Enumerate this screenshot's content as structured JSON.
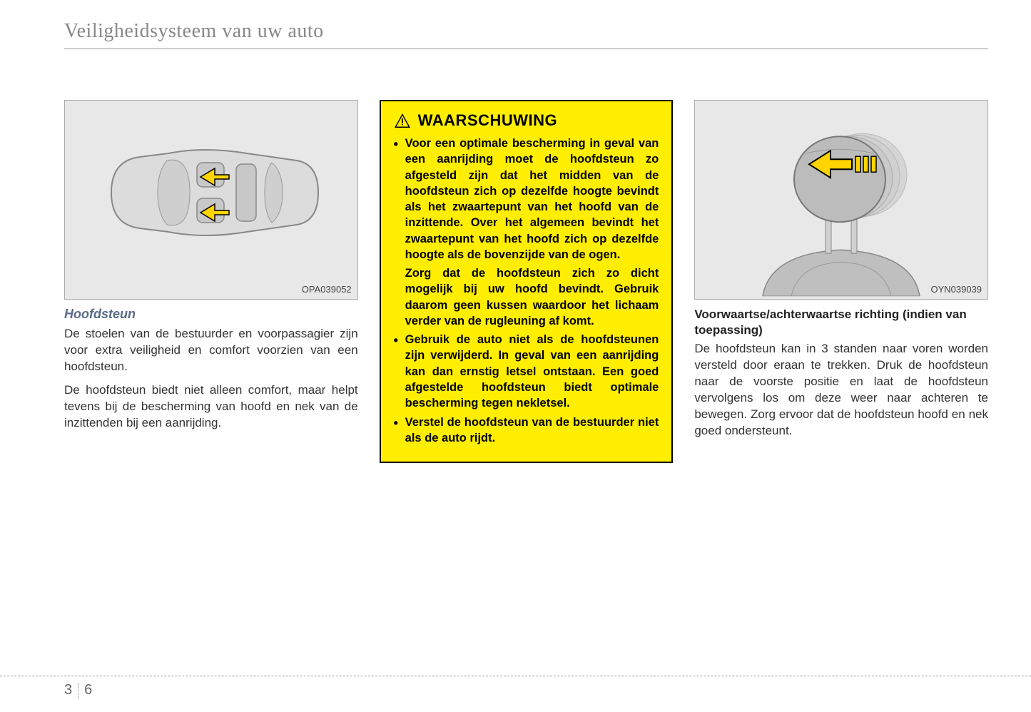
{
  "header": {
    "title": "Veiligheidsysteem van uw auto"
  },
  "column1": {
    "figure_code": "OPA039052",
    "section_title": "Hoofdsteun",
    "para1": "De stoelen van de bestuurder en voorpassagier zijn voor extra veiligheid en comfort voorzien van een hoofdsteun.",
    "para2": "De hoofdsteun biedt niet alleen comfort, maar helpt tevens bij de bescherming van hoofd en nek van de inzittenden bij een aanrijding."
  },
  "warning": {
    "title": "WAARSCHUWING",
    "items": [
      {
        "bulleted": true,
        "text": "Voor een optimale bescherming in geval van een aanrijding moet de hoofdsteun zo afgesteld zijn dat het midden van de hoofdsteun zich op dezelfde hoogte bevindt als het zwaartepunt van het hoofd van de inzittende. Over het algemeen bevindt het zwaartepunt van het hoofd zich op dezelfde hoogte als de bovenzijde van de ogen."
      },
      {
        "bulleted": false,
        "text": "Zorg dat de hoofdsteun zich zo dicht mogelijk bij uw hoofd bevindt. Gebruik daarom geen kussen waardoor het lichaam verder van de rugleuning af komt."
      },
      {
        "bulleted": true,
        "text": "Gebruik de auto niet als de hoofdsteunen zijn verwijderd. In geval van een aanrijding kan dan ernstig letsel ontstaan. Een goed afgestelde hoofdsteun biedt optimale bescherming tegen nekletsel."
      },
      {
        "bulleted": true,
        "text": "Verstel de hoofdsteun van de bestuurder niet als de auto rijdt."
      }
    ]
  },
  "column3": {
    "figure_code": "OYN039039",
    "subheading": "Voorwaartse/achterwaartse richting (indien van toepassing)",
    "para": "De hoofdsteun kan in 3 standen naar voren worden versteld door eraan te trekken. Druk de hoofdsteun naar de voorste positie en laat de hoofdsteun vervolgens los om deze weer naar achteren te bewegen. Zorg ervoor dat de hoofdsteun hoofd en nek goed ondersteunt."
  },
  "footer": {
    "chapter": "3",
    "page": "6"
  },
  "style": {
    "warning_bg": "#ffee00",
    "warning_border": "#000000",
    "arrow_fill": "#ffd400",
    "arrow_stroke": "#000000",
    "figure_bg": "#e8e8e8"
  }
}
